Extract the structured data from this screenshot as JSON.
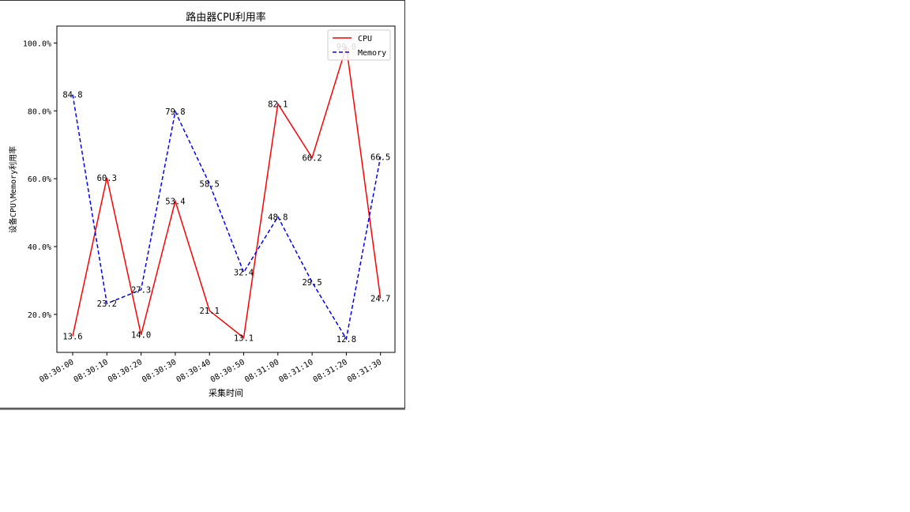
{
  "chart_data": {
    "type": "line",
    "title": "路由器CPU利用率",
    "xlabel": "采集时间",
    "ylabel": "设备CPU\\Memory利用率",
    "categories": [
      "08:30:00",
      "08:30:10",
      "08:30:20",
      "08:30:30",
      "08:30:40",
      "08:30:50",
      "08:31:00",
      "08:31:10",
      "08:31:20",
      "08:31:30"
    ],
    "ylim": [
      8.8,
      105.0
    ],
    "yticks": [
      20,
      40,
      60,
      80,
      100
    ],
    "yticklabels": [
      "20.0%",
      "40.0%",
      "60.0%",
      "80.0%",
      "100.0%"
    ],
    "legend_position": "top-right",
    "grid": false,
    "series": [
      {
        "name": "CPU",
        "color": "#ff0000",
        "dash": "solid",
        "values": [
          13.6,
          60.3,
          14.0,
          53.4,
          21.1,
          13.1,
          82.1,
          66.2,
          99.0,
          24.7
        ],
        "labels": [
          "13.6",
          "60.3",
          "14.0",
          "53.4",
          "21.1",
          "13.1",
          "82.1",
          "66.2",
          "99.0",
          "24.7"
        ]
      },
      {
        "name": "Memory",
        "color": "#0000ff",
        "dash": "dashed",
        "values": [
          84.8,
          23.2,
          27.3,
          79.8,
          58.5,
          32.4,
          48.8,
          29.5,
          12.8,
          66.5
        ],
        "labels": [
          "84.8",
          "23.2",
          "27.3",
          "79.8",
          "58.5",
          "32.4",
          "48.8",
          "29.5",
          "12.8",
          "66.5"
        ]
      }
    ]
  }
}
